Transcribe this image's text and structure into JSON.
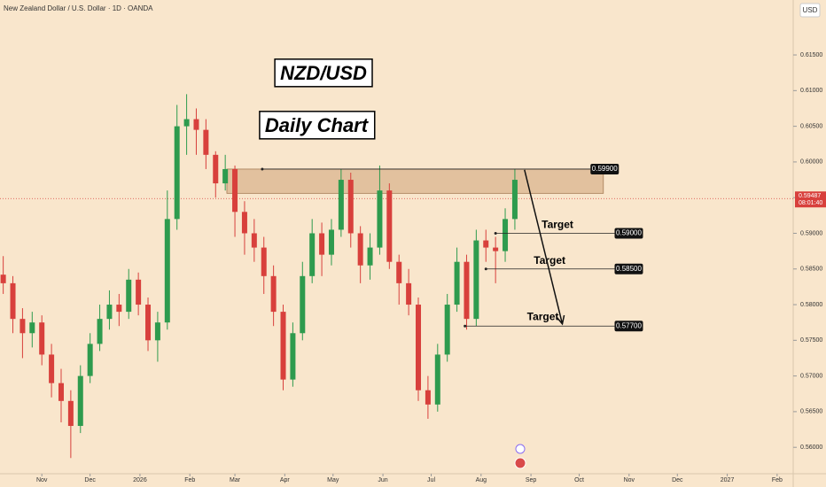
{
  "chart_data": {
    "type": "candlestick",
    "header": "New Zealand Dollar / U.S. Dollar · 1D · OANDA",
    "currency": "USD",
    "title": "NZD/USD",
    "subtitle": "Daily Chart",
    "up_color": "#2e9b4e",
    "down_color": "#d8403c",
    "x": [
      -24,
      -18,
      -12,
      -6,
      0,
      6,
      12,
      18,
      24,
      30,
      36,
      42,
      48,
      54,
      60,
      66,
      72,
      78,
      84,
      90,
      96,
      102,
      108,
      114,
      120,
      126,
      132,
      138,
      144,
      150,
      156,
      162,
      168,
      174,
      180,
      186,
      192,
      198,
      204,
      210,
      216,
      222,
      228,
      234,
      240,
      246,
      252,
      258,
      264,
      270,
      276,
      282,
      288,
      294
    ],
    "open": [
      0.5842,
      0.583,
      0.578,
      0.576,
      0.5775,
      0.573,
      0.569,
      0.5665,
      0.563,
      0.57,
      0.5745,
      0.578,
      0.58,
      0.579,
      0.5835,
      0.58,
      0.575,
      0.5775,
      0.592,
      0.605,
      0.606,
      0.6045,
      0.601,
      0.597,
      0.599,
      0.593,
      0.59,
      0.588,
      0.584,
      0.579,
      0.5695,
      0.576,
      0.584,
      0.59,
      0.587,
      0.5905,
      0.5975,
      0.59,
      0.5855,
      0.588,
      0.596,
      0.586,
      0.583,
      0.58,
      0.568,
      0.566,
      0.573,
      0.58,
      0.586,
      0.578,
      0.589,
      0.588,
      0.5875,
      0.592
    ],
    "high": [
      0.5868,
      0.584,
      0.5795,
      0.579,
      0.5785,
      0.5745,
      0.571,
      0.568,
      0.5715,
      0.576,
      0.58,
      0.582,
      0.5815,
      0.585,
      0.5845,
      0.581,
      0.579,
      0.596,
      0.608,
      0.6095,
      0.6075,
      0.606,
      0.6015,
      0.601,
      0.5995,
      0.5945,
      0.592,
      0.5895,
      0.5855,
      0.58,
      0.5775,
      0.586,
      0.592,
      0.5915,
      0.592,
      0.599,
      0.5985,
      0.591,
      0.59,
      0.5995,
      0.597,
      0.587,
      0.585,
      0.581,
      0.57,
      0.5745,
      0.5815,
      0.588,
      0.587,
      0.5905,
      0.5905,
      0.5895,
      0.5935,
      0.599
    ],
    "low": [
      0.5815,
      0.576,
      0.5725,
      0.574,
      0.5715,
      0.567,
      0.5635,
      0.5585,
      0.562,
      0.569,
      0.5735,
      0.5765,
      0.577,
      0.578,
      0.5785,
      0.5735,
      0.572,
      0.5765,
      0.5905,
      0.601,
      0.601,
      0.599,
      0.595,
      0.596,
      0.5895,
      0.587,
      0.586,
      0.5815,
      0.577,
      0.568,
      0.5685,
      0.575,
      0.583,
      0.584,
      0.5855,
      0.5895,
      0.588,
      0.583,
      0.5835,
      0.587,
      0.585,
      0.58,
      0.5785,
      0.5665,
      0.564,
      0.565,
      0.572,
      0.579,
      0.5765,
      0.577,
      0.586,
      0.583,
      0.586,
      0.5905
    ],
    "close": [
      0.583,
      0.578,
      0.576,
      0.5775,
      0.573,
      0.569,
      0.5665,
      0.563,
      0.57,
      0.5745,
      0.578,
      0.58,
      0.579,
      0.5835,
      0.58,
      0.575,
      0.5775,
      0.592,
      0.605,
      0.606,
      0.6045,
      0.601,
      0.597,
      0.599,
      0.593,
      0.59,
      0.588,
      0.584,
      0.579,
      0.5695,
      0.576,
      0.584,
      0.59,
      0.587,
      0.5905,
      0.5975,
      0.59,
      0.5855,
      0.588,
      0.596,
      0.586,
      0.583,
      0.58,
      0.568,
      0.566,
      0.573,
      0.58,
      0.586,
      0.578,
      0.589,
      0.588,
      0.5875,
      0.592,
      0.5975
    ],
    "xlim": [
      -26,
      467
    ],
    "xticks": [
      {
        "value": 0,
        "label": "Nov"
      },
      {
        "value": 30,
        "label": "Dec"
      },
      {
        "value": 61,
        "label": "2026"
      },
      {
        "value": 92,
        "label": "Feb"
      },
      {
        "value": 120,
        "label": "Mar"
      },
      {
        "value": 151,
        "label": "Apr"
      },
      {
        "value": 181,
        "label": "May"
      },
      {
        "value": 212,
        "label": "Jun"
      },
      {
        "value": 242,
        "label": "Jul"
      },
      {
        "value": 273,
        "label": "Aug"
      },
      {
        "value": 304,
        "label": "Sep"
      },
      {
        "value": 334,
        "label": "Oct"
      },
      {
        "value": 365,
        "label": "Nov"
      },
      {
        "value": 395,
        "label": "Dec"
      },
      {
        "value": 426,
        "label": "2027"
      },
      {
        "value": 457,
        "label": "Feb"
      }
    ],
    "ylim": [
      0.5563,
      0.6227
    ],
    "yticks": [
      {
        "value": 0.615,
        "label": "0.61500"
      },
      {
        "value": 0.61,
        "label": "0.61000"
      },
      {
        "value": 0.605,
        "label": "0.60500"
      },
      {
        "value": 0.6,
        "label": "0.60000"
      },
      {
        "value": 0.595,
        "label": "0.59500"
      },
      {
        "value": 0.59,
        "label": "0.59000"
      },
      {
        "value": 0.585,
        "label": "0.58500"
      },
      {
        "value": 0.58,
        "label": "0.58000"
      },
      {
        "value": 0.575,
        "label": "0.57500"
      },
      {
        "value": 0.57,
        "label": "0.57000"
      },
      {
        "value": 0.565,
        "label": "0.56500"
      },
      {
        "value": 0.56,
        "label": "0.56000"
      }
    ],
    "current_price": {
      "value": 0.59487,
      "label": "0.59487",
      "countdown": "08:01:40"
    },
    "zone": {
      "top": 0.599,
      "bottom": 0.5956,
      "from": 115,
      "to": 349
    },
    "levels": [
      {
        "value": 0.599,
        "label": "0.59900",
        "from": 137,
        "to": 341
      },
      {
        "value": 0.59,
        "label": "0.59000",
        "from": 282,
        "to": 356,
        "note": "Target"
      },
      {
        "value": 0.585,
        "label": "0.58500",
        "from": 276,
        "to": 356,
        "note": "Target"
      },
      {
        "value": 0.577,
        "label": "0.57700",
        "from": 263,
        "to": 356,
        "note": "Target"
      }
    ],
    "arrow": {
      "from": [
        300,
        0.5989
      ],
      "to": [
        323.5,
        0.5773
      ]
    }
  }
}
